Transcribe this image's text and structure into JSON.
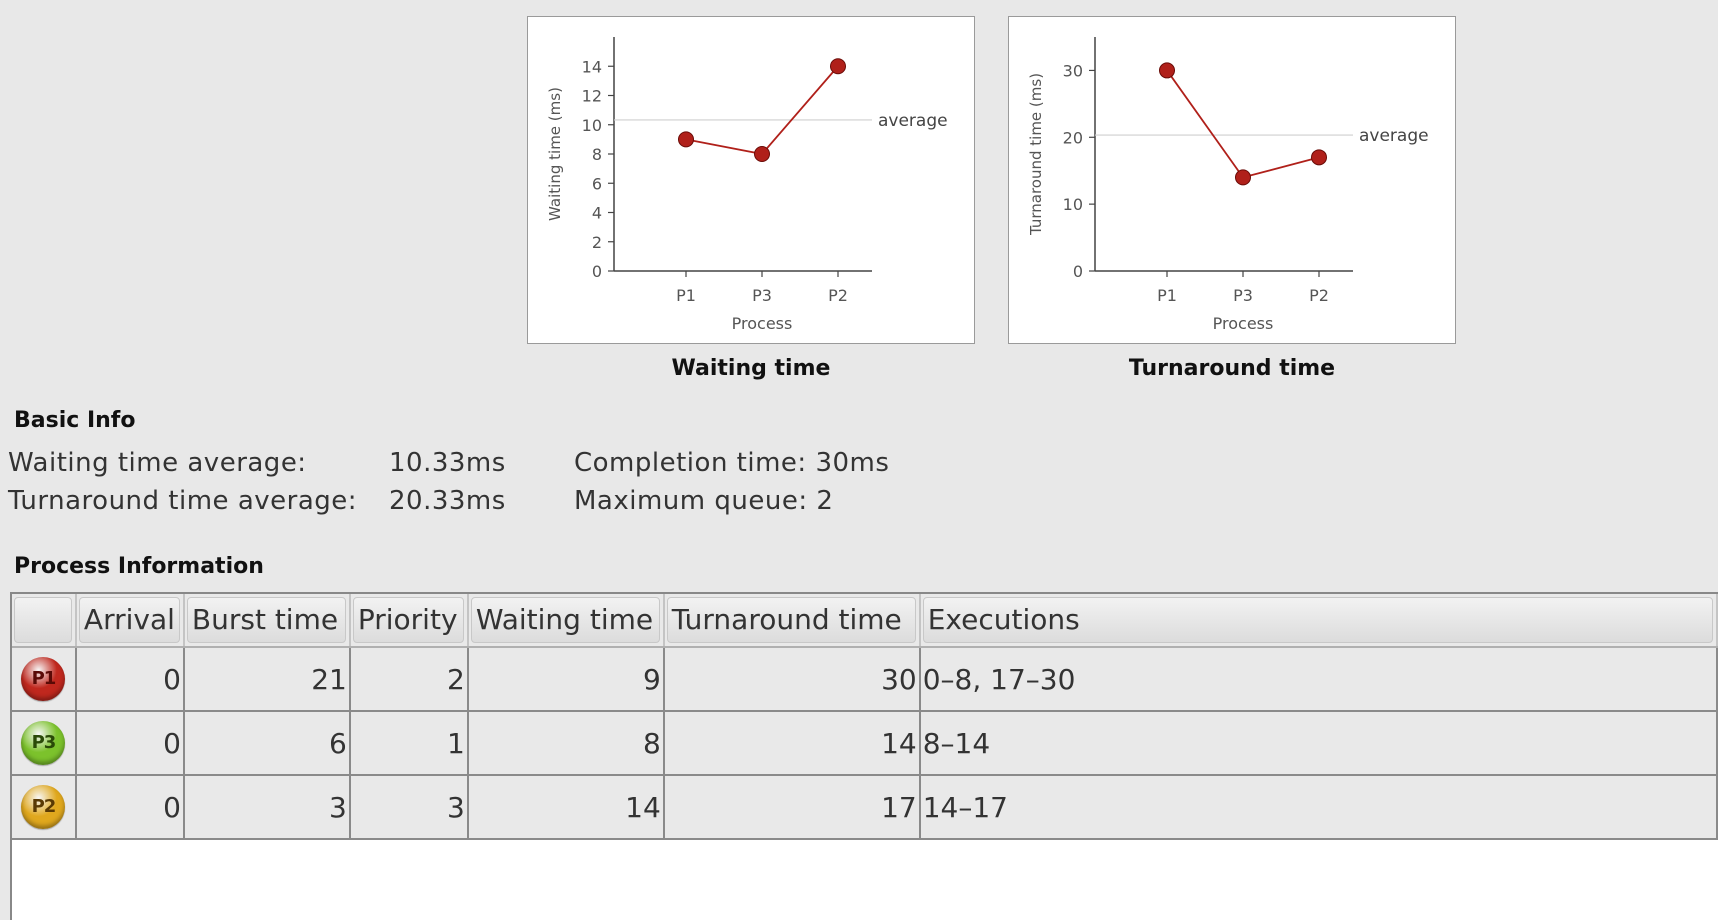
{
  "charts": {
    "waiting": {
      "caption": "Waiting time",
      "avg_label": "average"
    },
    "turnaround": {
      "caption": "Turnaround time",
      "avg_label": "average"
    }
  },
  "chart_data": [
    {
      "type": "line",
      "title": "",
      "xlabel": "Process",
      "ylabel": "Waiting time (ms)",
      "categories": [
        "P1",
        "P3",
        "P2"
      ],
      "series": [
        {
          "values": [
            9,
            8,
            14
          ]
        }
      ],
      "average": 10.33,
      "average_label": "average",
      "ylim": [
        0,
        16
      ],
      "yticks": [
        0,
        2,
        4,
        6,
        8,
        10,
        12,
        14
      ],
      "grid": false,
      "color": "#b0201a"
    },
    {
      "type": "line",
      "title": "",
      "xlabel": "Process",
      "ylabel": "Turnaround time (ms)",
      "categories": [
        "P1",
        "P3",
        "P2"
      ],
      "series": [
        {
          "values": [
            30,
            14,
            17
          ]
        }
      ],
      "average": 20.33,
      "average_label": "average",
      "ylim": [
        0,
        35
      ],
      "yticks": [
        0,
        10,
        20,
        30
      ],
      "grid": false,
      "color": "#b0201a"
    }
  ],
  "basic_info": {
    "title": "Basic Info",
    "waiting_avg_label": "Waiting time average:",
    "waiting_avg_value": "10.33ms",
    "turnaround_avg_label": "Turnaround time average:",
    "turnaround_avg_value": "20.33ms",
    "completion": "Completion time: 30ms",
    "max_queue": "Maximum queue: 2"
  },
  "process_info": {
    "title": "Process Information",
    "columns": [
      "",
      "Arrival",
      "Burst time",
      "Priority",
      "Waiting time",
      "Turnaround time",
      "Executions"
    ],
    "rows": [
      {
        "id": "P1",
        "color": "#c0281e",
        "text_color": "#5a0a06",
        "arrival": "0",
        "burst": "21",
        "priority": "2",
        "waiting": "9",
        "turnaround": "30",
        "executions": "0–8, 17–30"
      },
      {
        "id": "P3",
        "color": "#7cc22c",
        "text_color": "#2a4a08",
        "arrival": "0",
        "burst": "6",
        "priority": "1",
        "waiting": "8",
        "turnaround": "14",
        "executions": "8–14"
      },
      {
        "id": "P2",
        "color": "#e0a81e",
        "text_color": "#5a3a04",
        "arrival": "0",
        "burst": "3",
        "priority": "3",
        "waiting": "14",
        "turnaround": "17",
        "executions": "14–17"
      }
    ]
  }
}
